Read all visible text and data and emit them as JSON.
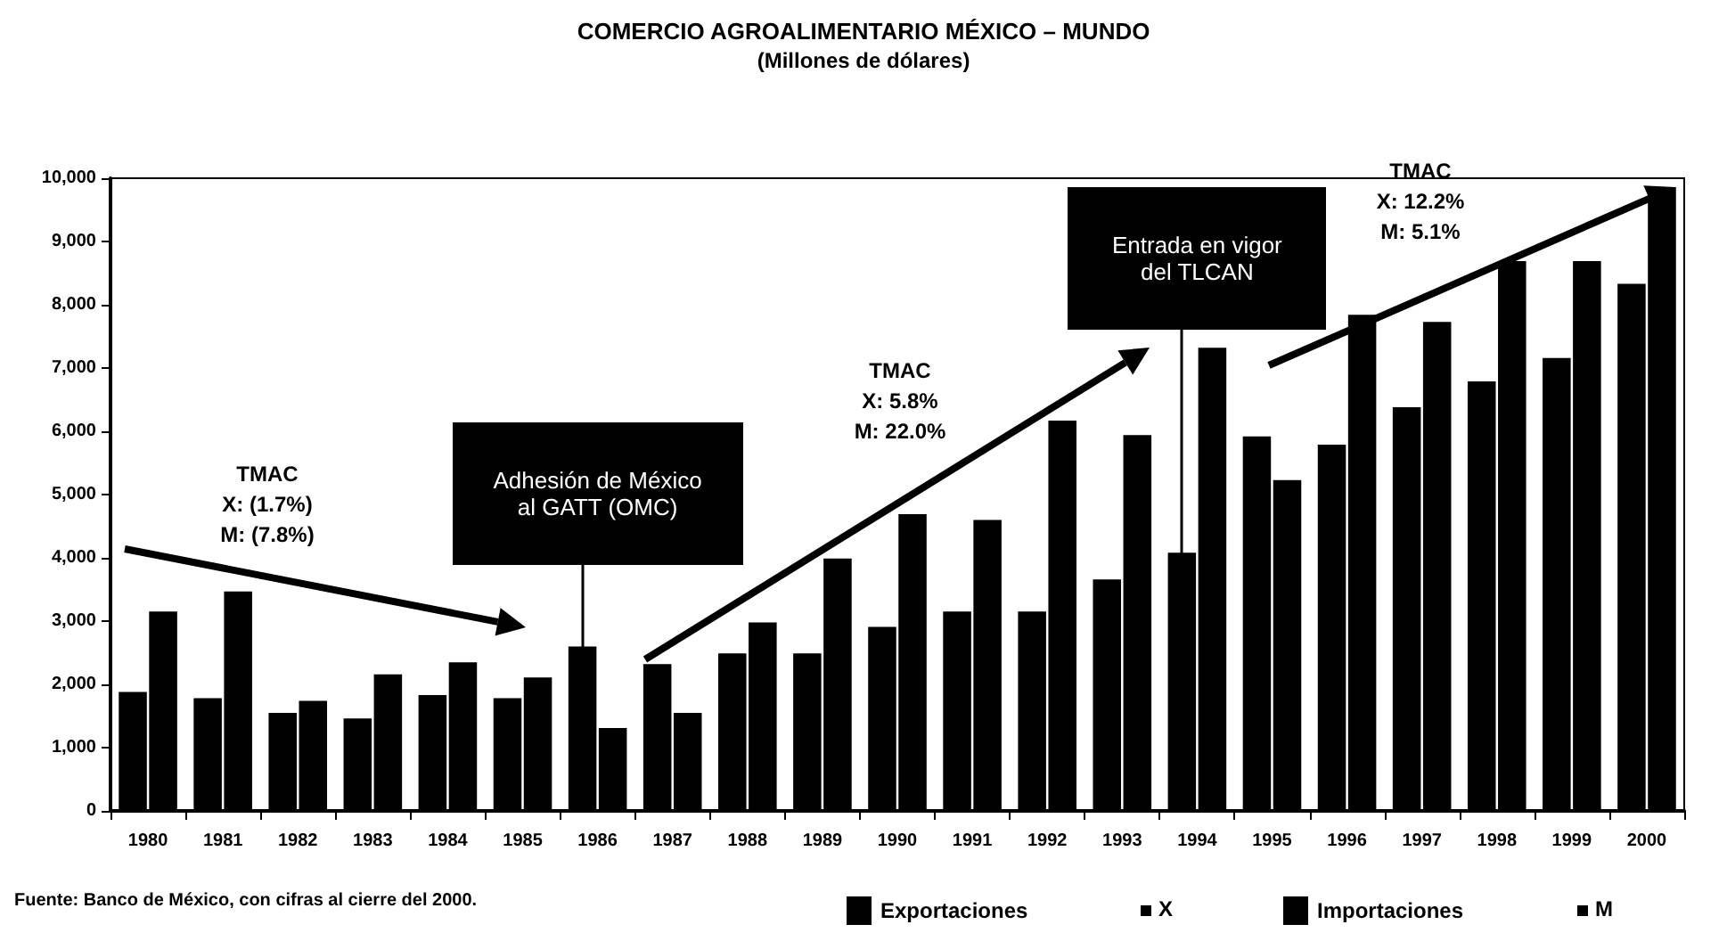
{
  "chart_data": {
    "type": "bar",
    "title": "COMERCIO AGROALIMENTARIO MÉXICO – MUNDO",
    "subtitle": "(Millones de dólares)",
    "categories": [
      "1980",
      "1981",
      "1982",
      "1983",
      "1984",
      "1985",
      "1986",
      "1987",
      "1988",
      "1989",
      "1990",
      "1991",
      "1992",
      "1993",
      "1994",
      "1995",
      "1996",
      "1997",
      "1998",
      "1999",
      "2000"
    ],
    "series": [
      {
        "name": "Exportaciones",
        "color": "#000000",
        "values": [
          1880,
          1780,
          1550,
          1460,
          1830,
          1780,
          2600,
          2320,
          2490,
          2490,
          2910,
          3150,
          3150,
          3660,
          4080,
          5920,
          5790,
          6380,
          6790,
          7160,
          8330
        ]
      },
      {
        "name": "Importaciones",
        "color": "#000000",
        "values": [
          3150,
          3470,
          1740,
          2160,
          2350,
          2110,
          1310,
          1550,
          2980,
          3990,
          4690,
          4600,
          6170,
          5940,
          7320,
          5230,
          7840,
          7730,
          8690,
          8690,
          9860
        ]
      }
    ],
    "ylim": [
      0,
      10000
    ],
    "yticks": [
      0,
      {
        "value": 1000,
        "label": "1,000"
      },
      {
        "value": 2000,
        "label": "2,000"
      },
      {
        "value": 3000,
        "label": "3,000"
      },
      {
        "value": 4000,
        "label": "4,000"
      },
      {
        "value": 5000,
        "label": "5,000"
      },
      {
        "value": 6000,
        "label": "6,000"
      },
      {
        "value": 7000,
        "label": "7,000"
      },
      {
        "value": 8000,
        "label": "8,000"
      },
      {
        "value": 9000,
        "label": "9,000"
      },
      {
        "value": 10000,
        "label": "10,000"
      }
    ],
    "grid": false,
    "legend": "bottom",
    "annotations": [
      "Fuente: Banco de México, con cifras al cierre del 2000.",
      "X",
      "M",
      "TMAC\nX: (1.7%)\nM: (7.8%)",
      "TMAC\nX: 5.8%\nM: 22.0%",
      "TMAC\nX: 12.2%\nM: 5.1%"
    ],
    "ref_lines": [
      {
        "axis": "x",
        "value": "1986",
        "label": "Adhesión de México\nal GATT (OMC)",
        "color": "#000000"
      },
      {
        "axis": "x",
        "value": "1994",
        "label": "Entrada en vigor\ndel TLCAN",
        "color": "#000000"
      }
    ]
  }
}
